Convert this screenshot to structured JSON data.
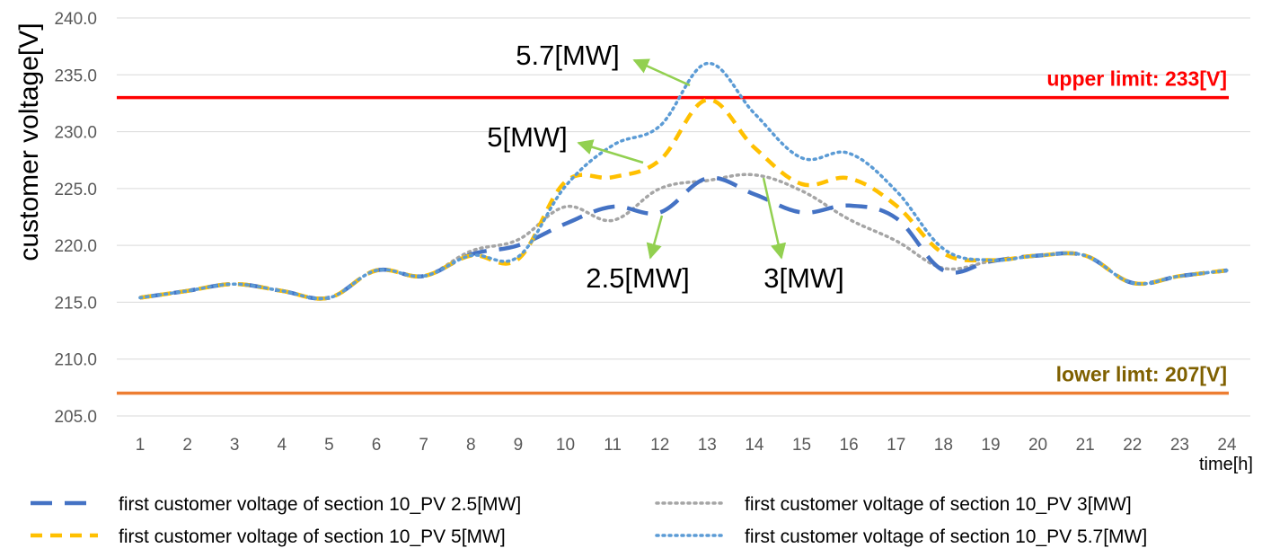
{
  "chart_data": {
    "type": "line",
    "x": [
      1,
      2,
      3,
      4,
      5,
      6,
      7,
      8,
      9,
      10,
      11,
      12,
      13,
      14,
      15,
      16,
      17,
      18,
      19,
      20,
      21,
      22,
      23,
      24
    ],
    "xlabel": "time[h]",
    "ylabel": "customer voltage[V]",
    "ylim": [
      205.0,
      240.0
    ],
    "yticks": [
      "205.0",
      "210.0",
      "215.0",
      "220.0",
      "225.0",
      "230.0",
      "235.0",
      "240.0"
    ],
    "grid": true,
    "legend_position": "bottom",
    "series": [
      {
        "name": "first customer voltage of section 10_PV 2.5[MW]",
        "color": "#4472C4",
        "style": "long-dash",
        "values": [
          215.4,
          216.0,
          216.6,
          216.0,
          215.4,
          217.8,
          217.3,
          219.2,
          220.0,
          221.9,
          223.4,
          222.9,
          225.9,
          224.5,
          222.9,
          223.5,
          222.4,
          217.8,
          218.6,
          219.1,
          219.1,
          216.7,
          217.3,
          217.8
        ]
      },
      {
        "name": "first customer voltage of section 10_PV 3[MW]",
        "color": "#A5A5A5",
        "style": "dotted",
        "values": [
          215.4,
          216.0,
          216.6,
          216.0,
          215.4,
          217.8,
          217.3,
          219.5,
          220.5,
          223.4,
          222.2,
          225.0,
          225.7,
          226.2,
          224.8,
          222.3,
          220.4,
          218.0,
          218.6,
          219.1,
          219.1,
          216.7,
          217.3,
          217.8
        ]
      },
      {
        "name": "first customer voltage of section 10_PV 5[MW]",
        "color": "#FFC000",
        "style": "dash",
        "values": [
          215.4,
          216.0,
          216.6,
          216.0,
          215.4,
          217.8,
          217.3,
          219.1,
          218.8,
          225.6,
          226.0,
          227.5,
          232.8,
          228.6,
          225.4,
          225.9,
          223.5,
          219.3,
          218.7,
          219.1,
          219.1,
          216.7,
          217.3,
          217.8
        ]
      },
      {
        "name": "first customer voltage of section 10_PV 5.7[MW]",
        "color": "#5B9BD5",
        "style": "dotted",
        "values": [
          215.4,
          216.0,
          216.6,
          216.0,
          215.4,
          217.8,
          217.3,
          219.1,
          219.0,
          225.2,
          228.8,
          230.5,
          236.0,
          231.6,
          227.7,
          228.1,
          224.8,
          219.7,
          218.7,
          219.1,
          219.1,
          216.7,
          217.3,
          217.8
        ]
      }
    ],
    "limits": [
      {
        "label": "upper limit: 233[V]",
        "value": 233,
        "color": "#FF0000",
        "label_color": "#FF0000"
      },
      {
        "label": "lower limt: 207[V]",
        "value": 207,
        "color": "#ED7D31",
        "label_color": "#7F6000"
      }
    ],
    "annotations": [
      {
        "text": "5.7[MW]"
      },
      {
        "text": "5[MW]"
      },
      {
        "text": "2.5[MW]"
      },
      {
        "text": "3[MW]"
      }
    ],
    "arrow_color": "#92D050"
  }
}
